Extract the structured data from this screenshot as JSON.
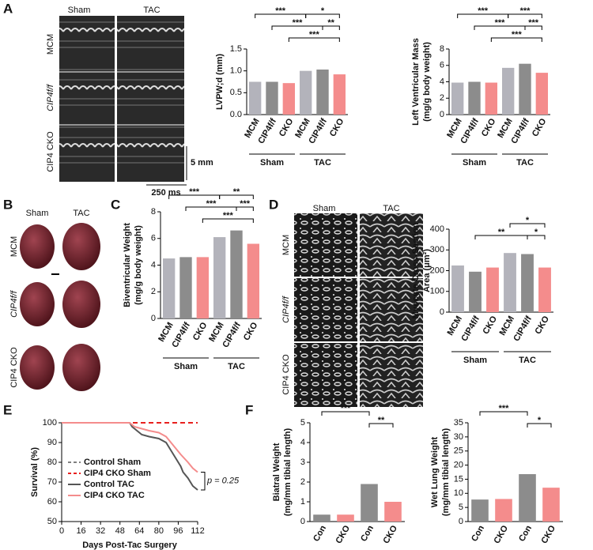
{
  "panels": [
    "A",
    "B",
    "C",
    "D",
    "E",
    "F"
  ],
  "echo": {
    "columns": [
      "Sham",
      "TAC"
    ],
    "rows": [
      "MCM",
      "CIP4f/f",
      "CIP4 CKO"
    ],
    "scale_y": "5 mm",
    "scale_x": "250 ms"
  },
  "hearts": {
    "columns": [
      "Sham",
      "TAC"
    ],
    "rows": [
      "MCM",
      "CIP4f/f",
      "CIP4 CKO"
    ]
  },
  "histology": {
    "columns": [
      "Sham",
      "TAC"
    ],
    "rows": [
      "MCM",
      "CIP4f/f",
      "CIP4 CKO"
    ]
  },
  "chart_data": [
    {
      "type": "bar",
      "ylabel": [
        "LVPW;d (mm)"
      ],
      "categories": [
        "MCM",
        "CIP4f/f",
        "CKO",
        "MCM",
        "CIP4f/f",
        "CKO"
      ],
      "groups": [
        "Sham",
        "TAC"
      ],
      "values": [
        0.75,
        0.75,
        0.72,
        1.0,
        1.03,
        0.92
      ],
      "colors": [
        "#b3b3bb",
        "#8c8c8c",
        "#f48c8c",
        "#b3b3bb",
        "#8c8c8c",
        "#f48c8c"
      ],
      "ylim": [
        0,
        1.5
      ],
      "yticks": [
        {
          "value": 0,
          "label": "0.0"
        },
        0.5,
        {
          "value": 1,
          "label": "1.0"
        },
        1.5
      ],
      "significance": [
        "***",
        "*",
        "***",
        "**",
        "***"
      ]
    },
    {
      "type": "bar",
      "ylabel": [
        "Left Ventricular Mass",
        "(mg/g body weight)"
      ],
      "categories": [
        "MCM",
        "CIP4f/f",
        "CKO",
        "MCM",
        "CIP4f/f",
        "CKO"
      ],
      "groups": [
        "Sham",
        "TAC"
      ],
      "values": [
        3.9,
        4.0,
        3.9,
        5.7,
        6.2,
        5.1
      ],
      "colors": [
        "#b3b3bb",
        "#8c8c8c",
        "#f48c8c",
        "#b3b3bb",
        "#8c8c8c",
        "#f48c8c"
      ],
      "ylim": [
        0,
        8
      ],
      "yticks": [
        0,
        2,
        4,
        6,
        8
      ],
      "significance": [
        "***",
        "***",
        "***",
        "***",
        "***"
      ]
    },
    {
      "type": "bar",
      "ylabel": [
        "Biventricular Weight",
        "(mg/g body  weight)"
      ],
      "categories": [
        "MCM",
        "CIP4f/f",
        "CKO",
        "MCM",
        "CIP4f/f",
        "CKO"
      ],
      "groups": [
        "Sham",
        "TAC"
      ],
      "values": [
        4.5,
        4.6,
        4.6,
        6.1,
        6.6,
        5.6
      ],
      "colors": [
        "#b3b3bb",
        "#8c8c8c",
        "#f48c8c",
        "#b3b3bb",
        "#8c8c8c",
        "#f48c8c"
      ],
      "ylim": [
        0,
        8
      ],
      "yticks": [
        0,
        2,
        4,
        6,
        8
      ],
      "significance": [
        "***",
        "**",
        "***",
        "***",
        "***"
      ]
    },
    {
      "type": "bar",
      "ylabel": [
        "Myocyte Cross-Section",
        "Area (μm²)"
      ],
      "categories": [
        "MCM",
        "CIP4f/f",
        "CKO",
        "MCM",
        "CIP4f/f",
        "CKO"
      ],
      "groups": [
        "Sham",
        "TAC"
      ],
      "values": [
        225,
        195,
        215,
        285,
        280,
        215
      ],
      "colors": [
        "#b3b3bb",
        "#8c8c8c",
        "#f48c8c",
        "#b3b3bb",
        "#8c8c8c",
        "#f48c8c"
      ],
      "ylim": [
        0,
        400
      ],
      "yticks": [
        0,
        100,
        200,
        300,
        400
      ],
      "significance": [
        "*",
        "**",
        "*"
      ]
    },
    {
      "type": "line",
      "ylabel": [
        "Survival (%)"
      ],
      "xlabel": "Days Post-Tac Surgery",
      "annotation": "p = 0.25",
      "xlim": [
        0,
        112
      ],
      "xticks": [
        0,
        16,
        32,
        48,
        64,
        80,
        96,
        112
      ],
      "ylim": [
        50,
        100
      ],
      "yticks": [
        50,
        60,
        70,
        80,
        90,
        100
      ],
      "series": [
        {
          "name": "Control Sham",
          "color": "#808080",
          "dashed": true,
          "x": [
            0,
            112
          ],
          "values": [
            100,
            100
          ]
        },
        {
          "name": "CIP4 CKO Sham",
          "color": "#e8201e",
          "dashed": true,
          "x": [
            0,
            112
          ],
          "values": [
            100,
            100
          ]
        },
        {
          "name": "Control TAC",
          "color": "#555555",
          "dashed": false,
          "x": [
            0,
            56,
            58,
            62,
            66,
            72,
            80,
            86,
            90,
            94,
            98,
            100,
            104,
            108,
            112
          ],
          "values": [
            100,
            100,
            98,
            96,
            94,
            93,
            92,
            90,
            86,
            82,
            78,
            75,
            72,
            68,
            66
          ]
        },
        {
          "name": "CIP4 CKO TAC",
          "color": "#f48c8c",
          "dashed": false,
          "x": [
            0,
            56,
            60,
            66,
            72,
            80,
            86,
            90,
            94,
            98,
            104,
            108,
            112
          ],
          "values": [
            100,
            100,
            98,
            97,
            96,
            95,
            93,
            90,
            87,
            84,
            80,
            77,
            75
          ]
        }
      ]
    },
    {
      "type": "bar",
      "ylabel": [
        "Biatral Weight",
        "(mg/mm tibial length)"
      ],
      "categories": [
        "Con",
        "CKO",
        "Con",
        "CKO"
      ],
      "groups": [
        "Sham",
        "TAC"
      ],
      "values": [
        0.35,
        0.35,
        1.9,
        1.0
      ],
      "colors": [
        "#8c8c8c",
        "#f48c8c",
        "#8c8c8c",
        "#f48c8c"
      ],
      "ylim": [
        0,
        5
      ],
      "yticks": [
        0,
        1,
        2,
        3,
        4,
        5
      ],
      "significance": [
        "***",
        "**"
      ]
    },
    {
      "type": "bar",
      "ylabel": [
        "Wet Lung Weight",
        "(mg/mm tibial length)"
      ],
      "categories": [
        "Con",
        "CKO",
        "Con",
        "CKO"
      ],
      "groups": [
        "Sham",
        "TAC"
      ],
      "values": [
        7.8,
        8.0,
        16.8,
        12.0
      ],
      "colors": [
        "#8c8c8c",
        "#f48c8c",
        "#8c8c8c",
        "#f48c8c"
      ],
      "ylim": [
        0,
        35
      ],
      "yticks": [
        0,
        5,
        10,
        15,
        20,
        25,
        30,
        35
      ],
      "significance": [
        "***",
        "*"
      ]
    }
  ]
}
